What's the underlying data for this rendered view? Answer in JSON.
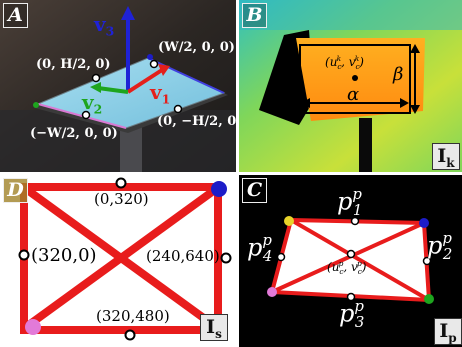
{
  "panels": {
    "A": {
      "label": "A",
      "axes": {
        "v1": "v",
        "v1_sub": "1",
        "v2": "v",
        "v2_sub": "2",
        "v3": "v",
        "v3_sub": "3"
      },
      "points": {
        "left": "(0, H/2, 0)",
        "right": "(W/2, 0, 0)",
        "bottom_left": "(−W/2, 0, 0)",
        "bottom_right": "(0, −H/2, 0)"
      },
      "colors": {
        "v1": "#e4201b",
        "v2": "#1ea51e",
        "v3": "#1f22d6",
        "board": "#8fd3e8"
      }
    },
    "B": {
      "label": "B",
      "center_label": "(u",
      "center_label_full": "(u_c^k, v_c^k)",
      "alpha": "α",
      "beta": "β",
      "corner": "I",
      "corner_sub": "k"
    },
    "D": {
      "label": "D",
      "points": {
        "top": "(0,320)",
        "left": "(320,0)",
        "right": "(240,640)",
        "bottom": "(320,480)"
      },
      "corner": "I",
      "corner_sub": "s",
      "colors": {
        "line": "#e81c1c",
        "tr": "#1c1cc8",
        "bl": "#e27ad8"
      }
    },
    "C": {
      "label": "C",
      "points": {
        "p1": "p",
        "p1_sub": "1",
        "p2": "p",
        "p2_sub": "2",
        "p3": "p",
        "p3_sub": "3",
        "p4": "p",
        "p4_sub": "4",
        "sup": "p"
      },
      "center": "(u",
      "center_full": "(u_c^p, v_c^p)",
      "corner": "I",
      "corner_sub": "p"
    }
  }
}
